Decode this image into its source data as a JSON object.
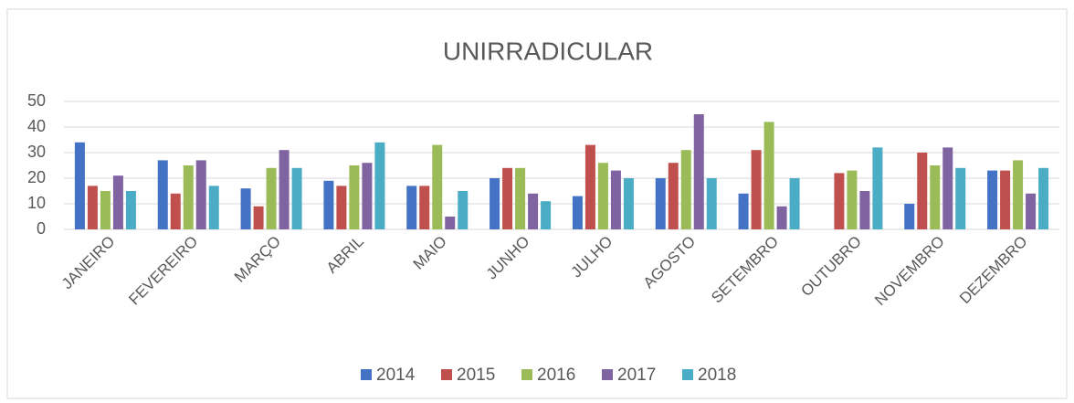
{
  "chart_data": {
    "type": "bar",
    "title": "UNIRRADICULAR",
    "categories": [
      "JANEIRO",
      "FEVEREIRO",
      "MARÇO",
      "ABRIL",
      "MAIO",
      "JUNHO",
      "JULHO",
      "AGOSTO",
      "SETEMBRO",
      "OUTUBRO",
      "NOVEMBRO",
      "DEZEMBRO"
    ],
    "series": [
      {
        "name": "2014",
        "color": "#4472c4",
        "values": [
          34,
          27,
          16,
          19,
          17,
          20,
          13,
          20,
          14,
          0,
          10,
          23
        ]
      },
      {
        "name": "2015",
        "color": "#c0504d",
        "values": [
          17,
          14,
          9,
          17,
          17,
          24,
          33,
          26,
          31,
          22,
          30,
          23
        ]
      },
      {
        "name": "2016",
        "color": "#9bbb59",
        "values": [
          15,
          25,
          24,
          25,
          33,
          24,
          26,
          31,
          42,
          23,
          25,
          27
        ]
      },
      {
        "name": "2017",
        "color": "#8064a2",
        "values": [
          21,
          27,
          31,
          26,
          5,
          14,
          23,
          45,
          9,
          15,
          32,
          14
        ]
      },
      {
        "name": "2018",
        "color": "#4bacc6",
        "values": [
          15,
          17,
          24,
          34,
          15,
          11,
          20,
          20,
          20,
          32,
          24,
          24
        ]
      }
    ],
    "ylim": [
      0,
      50
    ],
    "yticks": [
      0,
      10,
      20,
      30,
      40,
      50
    ],
    "grid": true,
    "legend": "bottom"
  }
}
